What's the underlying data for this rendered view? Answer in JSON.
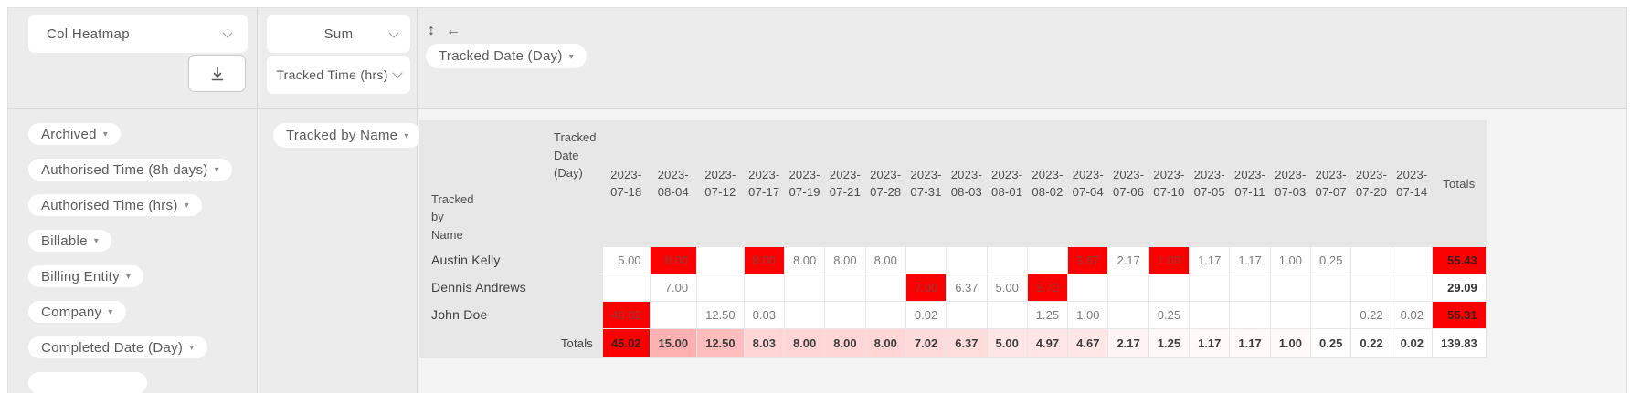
{
  "toolbar": {
    "chart_type": {
      "value": "Col Heatmap"
    },
    "aggregation": {
      "value": "Sum"
    },
    "measure": {
      "value": "Tracked Time (hrs)"
    },
    "column_field": {
      "label": "Tracked Date (Day)"
    }
  },
  "icons": {
    "caret": "▾",
    "resize_vertical": "↕",
    "arrow_left": "←"
  },
  "filters": [
    "Archived",
    "Authorised Time (8h days)",
    "Authorised Time (hrs)",
    "Billable",
    "Billing Entity",
    "Company",
    "Completed Date (Day)"
  ],
  "row_field": {
    "label": "Tracked by Name"
  },
  "colors": {
    "hot_red": "#fa0000",
    "header_bg": "#e7e7e7",
    "panel_bg": "#ececec"
  },
  "pivot": {
    "corner": {
      "col_axis": "Tracked Date (Day)",
      "row_axis": "Tracked by Name"
    },
    "totals_label": "Totals",
    "columns": [
      "2023-07-18",
      "2023-08-04",
      "2023-07-12",
      "2023-07-17",
      "2023-07-19",
      "2023-07-21",
      "2023-07-28",
      "2023-07-31",
      "2023-08-03",
      "2023-08-01",
      "2023-08-02",
      "2023-07-04",
      "2023-07-06",
      "2023-07-10",
      "2023-07-05",
      "2023-07-11",
      "2023-07-03",
      "2023-07-07",
      "2023-07-20",
      "2023-07-14"
    ],
    "rows": [
      {
        "name": "Austin Kelly",
        "values": [
          "5.00",
          "8.00",
          "",
          "8.00",
          "8.00",
          "8.00",
          "8.00",
          "",
          "",
          "",
          "",
          "3.67",
          "2.17",
          "1.00",
          "1.17",
          "1.17",
          "1.00",
          "0.25",
          "",
          ""
        ],
        "hot": [
          1,
          3,
          11,
          13
        ],
        "total": "55.43",
        "total_hot": true
      },
      {
        "name": "Dennis Andrews",
        "values": [
          "",
          "7.00",
          "",
          "",
          "",
          "",
          "",
          "7.00",
          "6.37",
          "5.00",
          "3.72",
          "",
          "",
          "",
          "",
          "",
          "",
          "",
          "",
          ""
        ],
        "hot": [
          7,
          10
        ],
        "total": "29.09",
        "total_hot": false
      },
      {
        "name": "John Doe",
        "values": [
          "40.02",
          "",
          "12.50",
          "0.03",
          "",
          "",
          "",
          "0.02",
          "",
          "",
          "1.25",
          "1.00",
          "",
          "0.25",
          "",
          "",
          "",
          "",
          "0.22",
          "0.02"
        ],
        "hot": [
          0
        ],
        "total": "55.31",
        "total_hot": true
      }
    ],
    "totals_row": {
      "label": "Totals",
      "values": [
        "45.02",
        "15.00",
        "12.50",
        "8.03",
        "8.00",
        "8.00",
        "8.00",
        "7.02",
        "6.37",
        "5.00",
        "4.97",
        "4.67",
        "2.17",
        "1.25",
        "1.17",
        "1.17",
        "1.00",
        "0.25",
        "0.22",
        "0.02"
      ],
      "grand": "139.83",
      "max": 45.02
    }
  }
}
